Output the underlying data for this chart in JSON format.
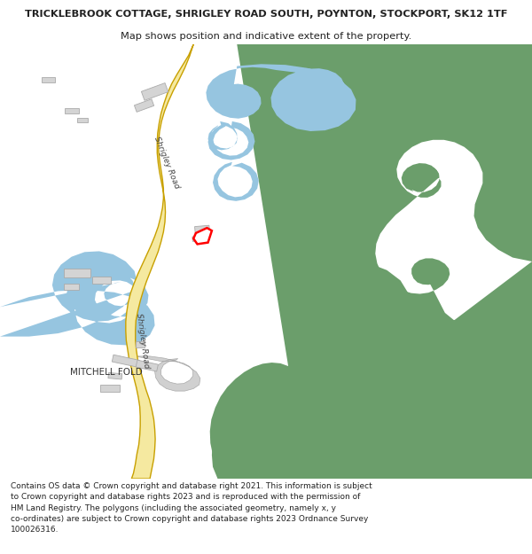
{
  "title_line1": "TRICKLEBROOK COTTAGE, SHRIGLEY ROAD SOUTH, POYNTON, STOCKPORT, SK12 1TF",
  "title_line2": "Map shows position and indicative extent of the property.",
  "footer_lines": [
    "Contains OS data © Crown copyright and database right 2021. This information is subject",
    "to Crown copyright and database rights 2023 and is reproduced with the permission of",
    "HM Land Registry. The polygons (including the associated geometry, namely x, y",
    "co-ordinates) are subject to Crown copyright and database rights 2023 Ordnance Survey",
    "100026316."
  ],
  "bg_color": "#ffffff",
  "map_bg": "#f7f7f7",
  "green_color": "#6b9e6b",
  "blue_color": "#96c5e0",
  "road_fill": "#f5e9a0",
  "road_edge": "#c8a000",
  "building_color": "#d4d4d4",
  "building_edge": "#aaaaaa",
  "driveway_color": "#d0d0d0",
  "driveway_edge": "#aaaaaa",
  "plot_fill": "#ffffff",
  "plot_edge": "#ff0000",
  "text_dark": "#222222",
  "road_label_color": "#444444"
}
